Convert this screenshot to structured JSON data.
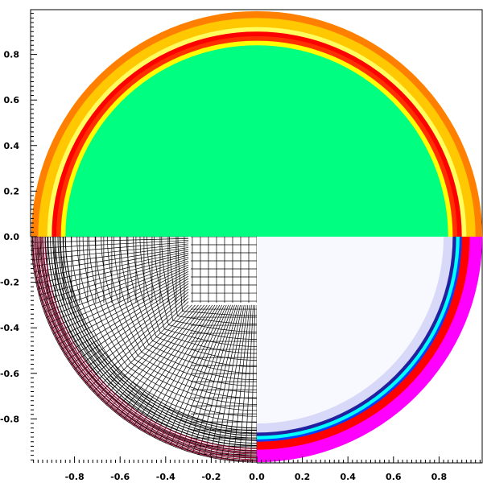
{
  "chart_data": {
    "type": "field-plot",
    "title": "",
    "xlabel": "",
    "ylabel": "",
    "xlim": [
      -1.0,
      1.0
    ],
    "ylim": [
      -1.0,
      1.0
    ],
    "x_ticks": [
      -0.8,
      -0.6,
      -0.4,
      -0.2,
      0.0,
      0.2,
      0.4,
      0.6,
      0.8
    ],
    "y_ticks": [
      -0.8,
      -0.6,
      -0.4,
      -0.2,
      0.0,
      0.2,
      0.4,
      0.6,
      0.8
    ],
    "x_tick_labels": [
      "-0.8",
      "-0.6",
      "-0.4",
      "-0.2",
      "0.0",
      "0.2",
      "0.4",
      "0.6",
      "0.8"
    ],
    "y_tick_labels": [
      "-0.8",
      "-0.6",
      "-0.4",
      "-0.2",
      "0.0",
      "0.2",
      "0.4",
      "0.6",
      "0.8"
    ],
    "domain_radius": 0.99,
    "quadrants": {
      "top_half": {
        "content": "color-field",
        "fill_color": "#00ff80",
        "rings": [
          {
            "r_inner": 0.84,
            "r_outer": 0.86,
            "color": "#ffff00"
          },
          {
            "r_inner": 0.86,
            "r_outer": 0.88,
            "color": "#ff3000"
          },
          {
            "r_inner": 0.88,
            "r_outer": 0.9,
            "color": "#ff0000"
          },
          {
            "r_inner": 0.9,
            "r_outer": 0.92,
            "color": "#ffff60"
          },
          {
            "r_inner": 0.92,
            "r_outer": 0.96,
            "color": "#ffc800"
          },
          {
            "r_inner": 0.96,
            "r_outer": 0.99,
            "color": "#ff8000"
          }
        ]
      },
      "bottom_left": {
        "content": "mesh",
        "line_color": "#000000",
        "outer_line_color": "#a00030"
      },
      "bottom_right": {
        "content": "color-field",
        "fill_color": "#f8f8ff",
        "rings": [
          {
            "r_inner": 0.82,
            "r_outer": 0.86,
            "color": "#d8d8f8"
          },
          {
            "r_inner": 0.86,
            "r_outer": 0.875,
            "color": "#2020a0"
          },
          {
            "r_inner": 0.875,
            "r_outer": 0.89,
            "color": "#00ffff"
          },
          {
            "r_inner": 0.89,
            "r_outer": 0.9,
            "color": "#0040ff"
          },
          {
            "r_inner": 0.9,
            "r_outer": 0.935,
            "color": "#ff0000"
          },
          {
            "r_inner": 0.935,
            "r_outer": 0.99,
            "color": "#ff00ff"
          }
        ]
      }
    }
  }
}
